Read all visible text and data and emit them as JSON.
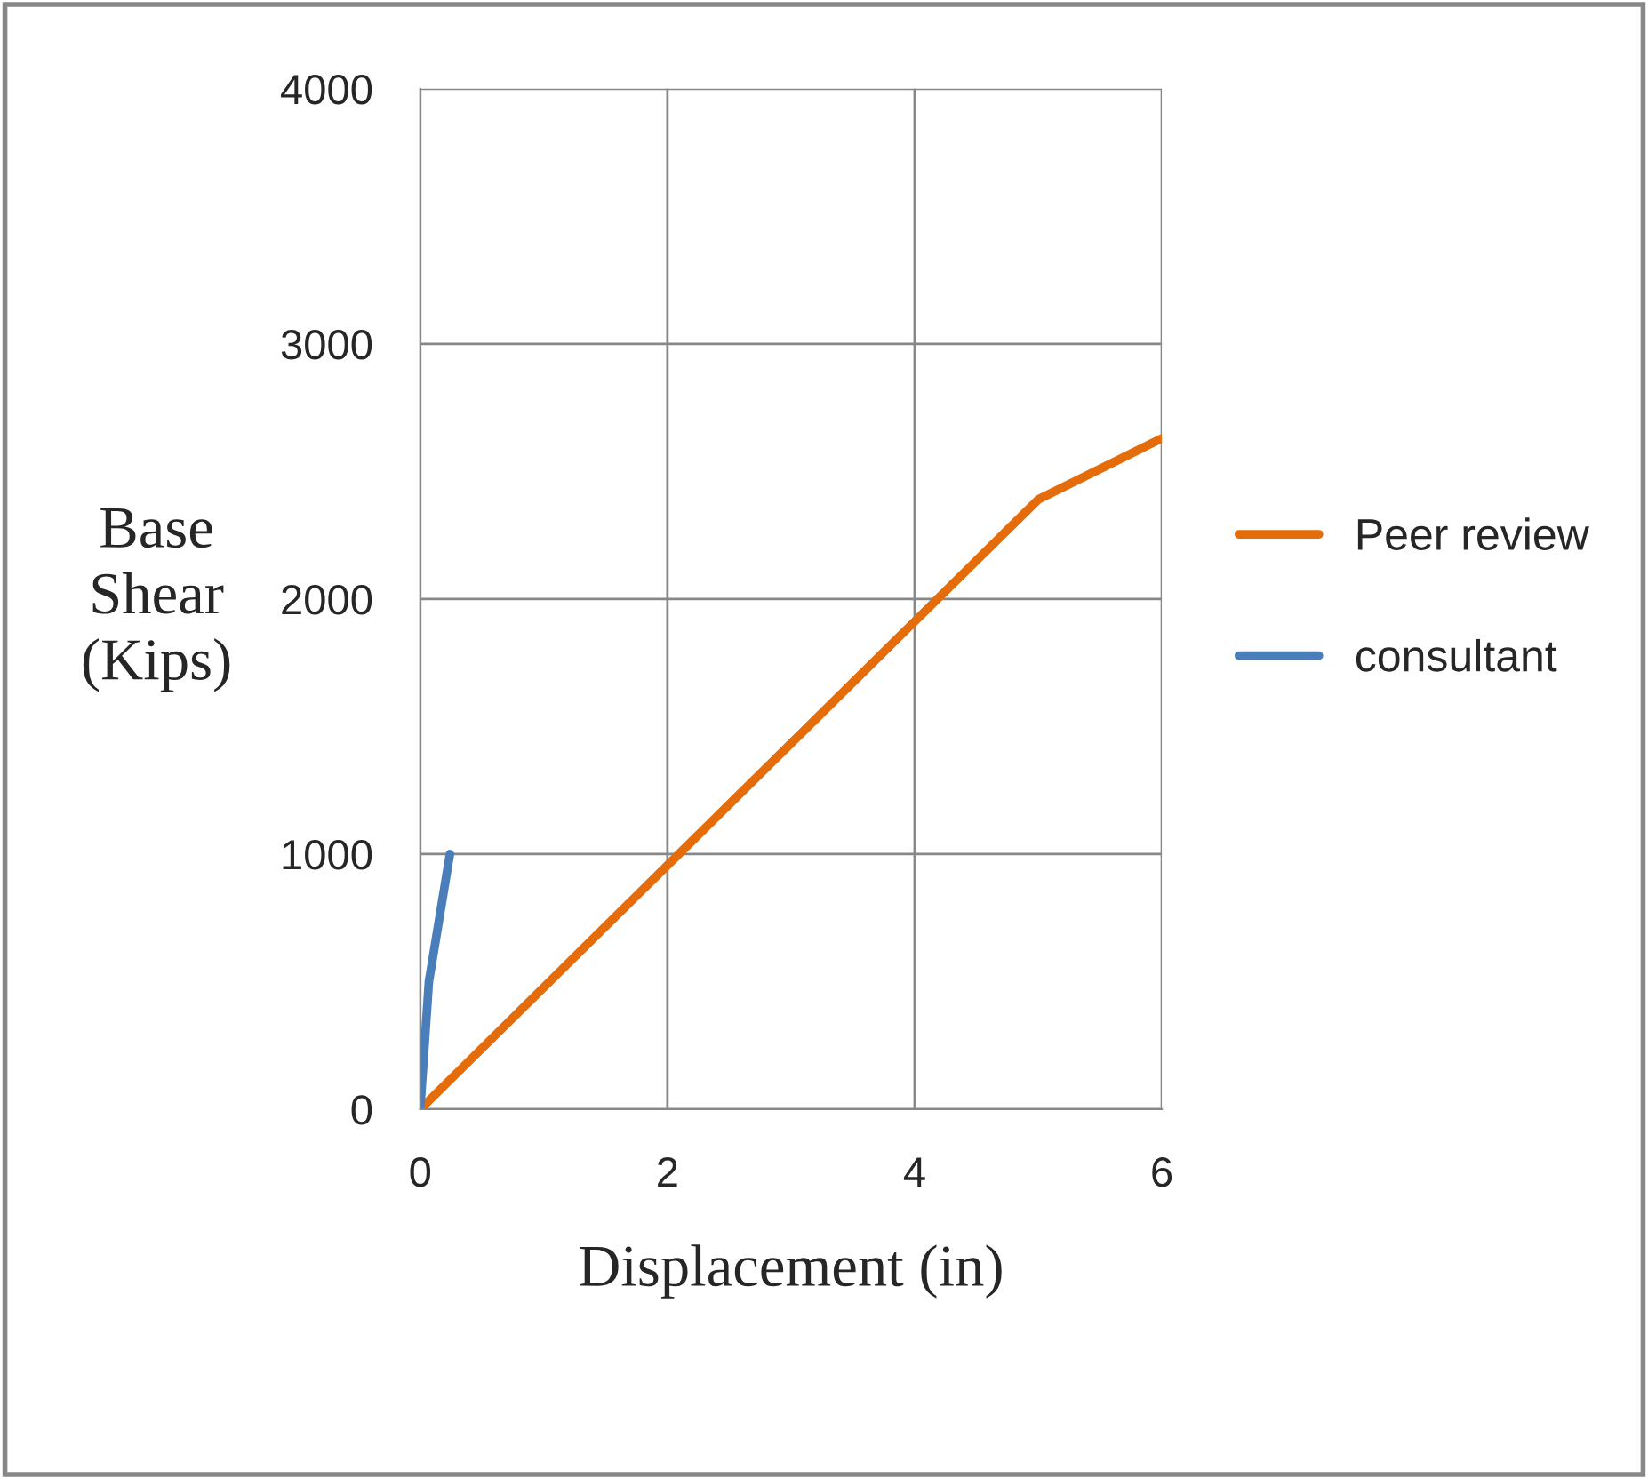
{
  "chart_data": {
    "type": "line",
    "xlabel": "Displacement (in)",
    "ylabel": "Base\nShear\n(Kips)",
    "xlim": [
      0,
      6
    ],
    "xticks": [
      0,
      2,
      4,
      6
    ],
    "ylim": [
      0,
      4000
    ],
    "yticks": [
      0,
      1000,
      2000,
      3000,
      4000
    ],
    "grid": true,
    "legend": "right",
    "marker": "none",
    "line_style": "solid",
    "series": [
      {
        "name": "Peer review",
        "color": "#e46c0a",
        "x": [
          0,
          5,
          6
        ],
        "values": [
          0,
          2390,
          2630
        ]
      },
      {
        "name": "consultant",
        "color": "#4a7ebb",
        "x": [
          0,
          0.07,
          0.24
        ],
        "values": [
          0,
          500,
          1000
        ]
      }
    ]
  }
}
